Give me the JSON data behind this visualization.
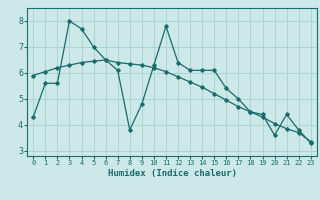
{
  "xlabel": "Humidex (Indice chaleur)",
  "bg_color": "#cce8e8",
  "line_color": "#1a6b6b",
  "grid_color": "#aad4d4",
  "x_jagged": [
    0,
    1,
    2,
    3,
    4,
    5,
    6,
    7,
    8,
    9,
    10,
    11,
    12,
    13,
    14,
    15,
    16,
    17,
    18,
    19,
    20,
    21,
    22,
    23
  ],
  "y_jagged": [
    4.3,
    5.6,
    5.6,
    8.0,
    7.7,
    7.0,
    6.5,
    6.1,
    3.8,
    4.8,
    6.3,
    7.8,
    6.4,
    6.1,
    6.1,
    6.1,
    5.4,
    5.0,
    4.5,
    4.4,
    3.6,
    4.4,
    3.8,
    3.3
  ],
  "x_trend": [
    0,
    1,
    2,
    3,
    4,
    5,
    6,
    7,
    8,
    9,
    10,
    11,
    12,
    13,
    14,
    15,
    16,
    17,
    18,
    19,
    20,
    21,
    22,
    23
  ],
  "y_trend": [
    5.9,
    6.05,
    6.2,
    6.3,
    6.4,
    6.45,
    6.5,
    6.4,
    6.35,
    6.3,
    6.2,
    6.05,
    5.85,
    5.65,
    5.45,
    5.2,
    4.95,
    4.7,
    4.5,
    4.3,
    4.05,
    3.85,
    3.7,
    3.35
  ],
  "ylim": [
    2.8,
    8.5
  ],
  "xlim": [
    -0.5,
    23.5
  ],
  "yticks": [
    3,
    4,
    5,
    6,
    7,
    8
  ],
  "xticks": [
    0,
    1,
    2,
    3,
    4,
    5,
    6,
    7,
    8,
    9,
    10,
    11,
    12,
    13,
    14,
    15,
    16,
    17,
    18,
    19,
    20,
    21,
    22,
    23
  ]
}
